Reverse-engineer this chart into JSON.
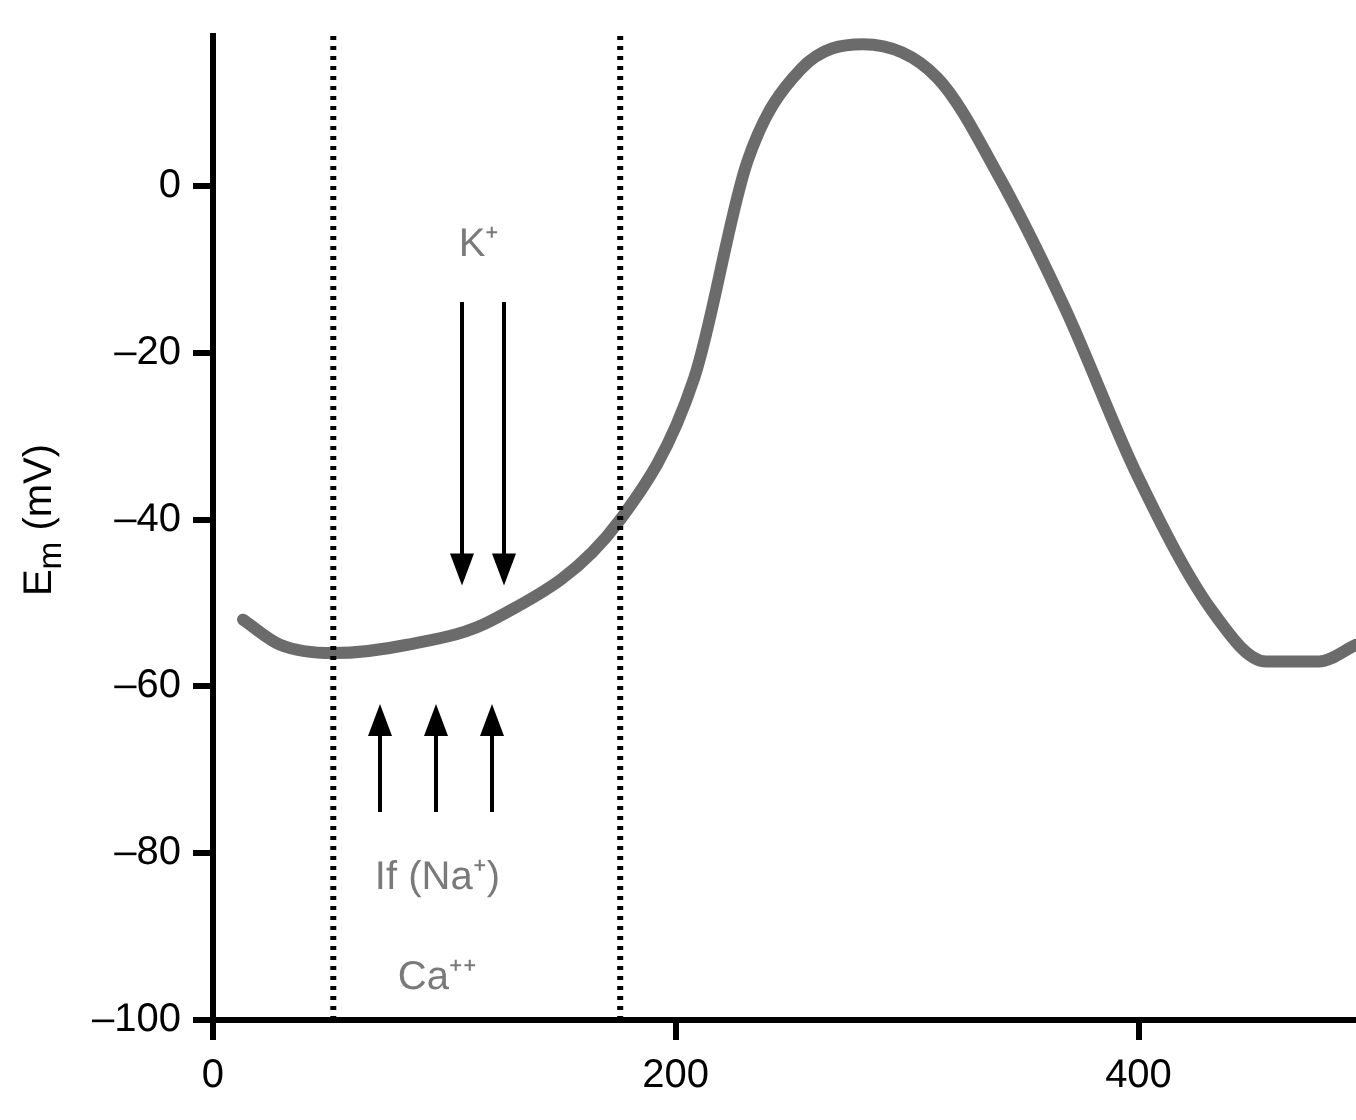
{
  "chart_data": {
    "type": "line",
    "ylabel": "E$_{m}$ (mV)",
    "x": [
      13,
      29,
      52,
      84,
      121,
      176,
      208,
      231,
      254,
      281,
      313,
      340,
      368,
      400,
      432,
      455,
      478,
      494
    ],
    "series": [
      {
        "color": "#6b6b6b",
        "values": [
          -52,
          -55,
          -56,
          -55,
          -52,
          -40,
          -23,
          3,
          14,
          17,
          13,
          1,
          -14.5,
          -35,
          -51,
          -57,
          -57,
          -55
        ]
      }
    ],
    "xlim": [
      0,
      494
    ],
    "ylim": [
      -100,
      18
    ],
    "xticks": [
      0,
      200,
      400
    ],
    "yticks": [
      {
        "value": 0,
        "label": "0"
      },
      {
        "value": -20,
        "label": "–20"
      },
      {
        "value": -40,
        "label": "–40"
      },
      {
        "value": -60,
        "label": "–60"
      },
      {
        "value": -80,
        "label": "–80"
      },
      {
        "value": -100,
        "label": "–100"
      }
    ],
    "ref_lines": [
      {
        "axis": "x",
        "value": 52,
        "color": "#000000",
        "line_style": "dotted"
      },
      {
        "axis": "x",
        "value": 176,
        "color": "#000000",
        "line_style": "dotted"
      }
    ],
    "annotations": [
      "K⁺",
      "If (Na⁺)",
      "Ca⁺⁺"
    ],
    "grid": false,
    "legend": false,
    "marker": "none",
    "line_style": "solid"
  }
}
